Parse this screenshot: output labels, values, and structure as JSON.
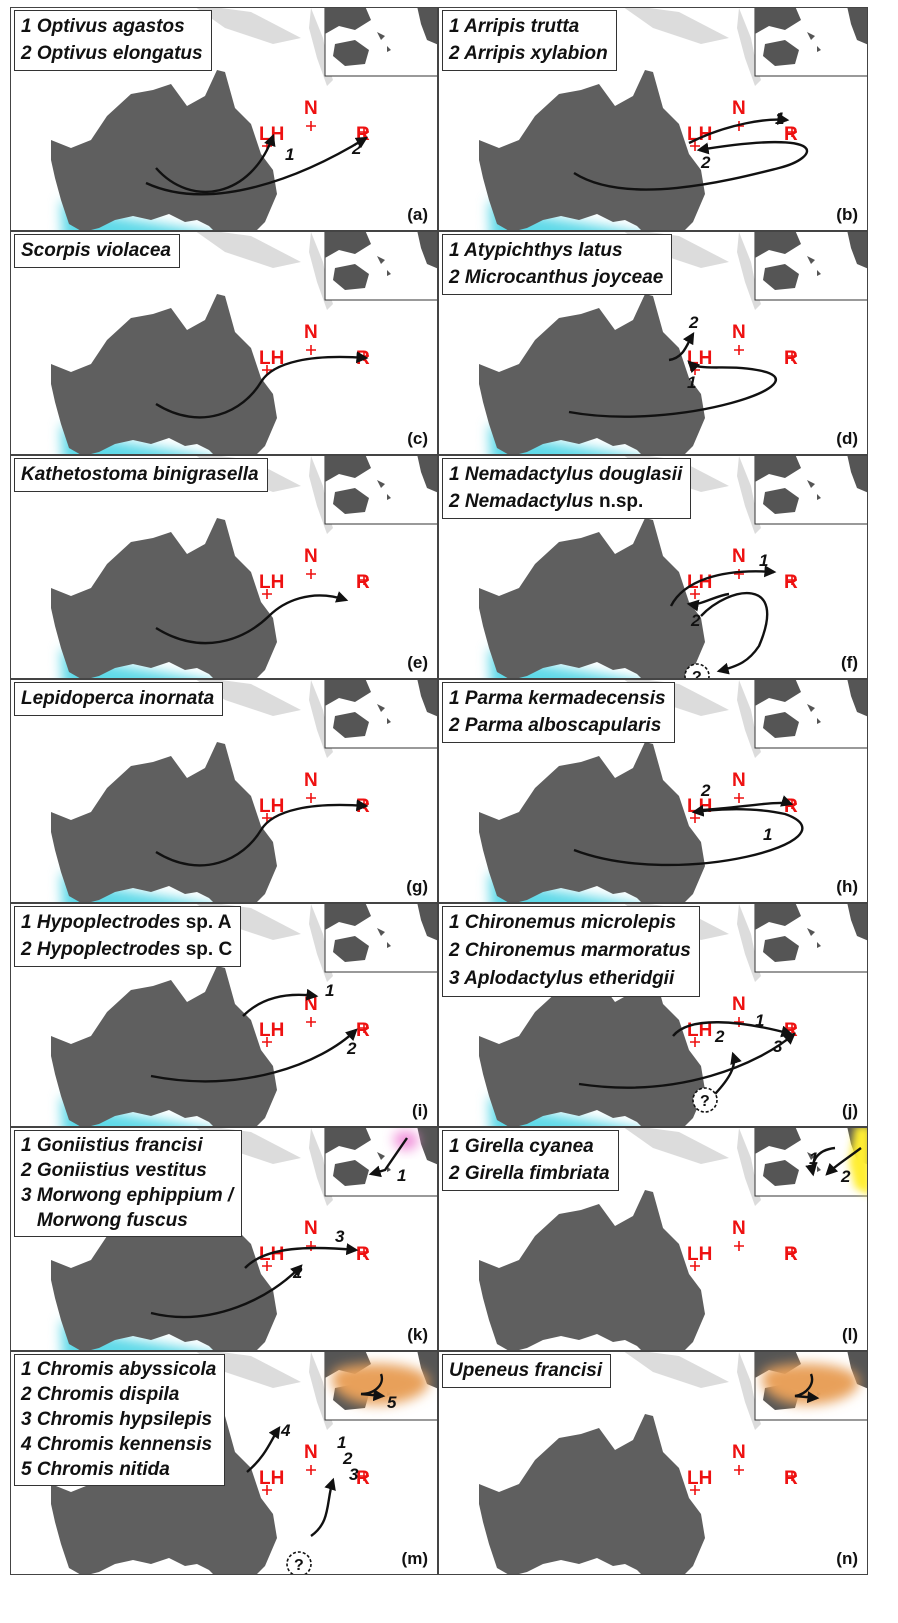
{
  "colors": {
    "land": "#5f5f5f",
    "faint_land": "#dcdcdc",
    "site": "#ee1111",
    "cyan_range": "#5fd9e8",
    "green_range": "#2bdc2b",
    "pink_range": "#f08ad8",
    "yellow_range": "#ffee33",
    "orange_range": "#e8a05a",
    "arrow": "#111111"
  },
  "sites": {
    "lh": "LH",
    "n": "N",
    "r": "R"
  },
  "unknown_origin_label": "?",
  "panels": [
    {
      "letter": "(a)",
      "legend": [
        {
          "text": "1 Optivus agastos"
        },
        {
          "text": "2 Optivus elongatus"
        }
      ]
    },
    {
      "letter": "(b)",
      "legend": [
        {
          "text": "1 Arripis trutta"
        },
        {
          "text": "2 Arripis xylabion"
        }
      ]
    },
    {
      "letter": "(c)",
      "legend": [
        {
          "text": "Scorpis violacea"
        }
      ]
    },
    {
      "letter": "(d)",
      "legend": [
        {
          "text": "1 Atypichthys latus"
        },
        {
          "text": "2 Microcanthus joyceae"
        }
      ]
    },
    {
      "letter": "(e)",
      "legend": [
        {
          "text": "Kathetostoma binigrasella"
        }
      ]
    },
    {
      "letter": "(f)",
      "legend": [
        {
          "text": "1 Nemadactylus douglasii"
        },
        {
          "text": "2 Nemadactylus",
          "suffix": " n.sp."
        }
      ]
    },
    {
      "letter": "(g)",
      "legend": [
        {
          "text": "Lepidoperca inornata"
        }
      ]
    },
    {
      "letter": "(h)",
      "legend": [
        {
          "text": "1 Parma kermadecensis"
        },
        {
          "text": "2 Parma alboscapularis"
        }
      ]
    },
    {
      "letter": "(i)",
      "legend": [
        {
          "text": "1 Hypoplectrodes",
          "suffix": " sp. A"
        },
        {
          "text": "2 Hypoplectrodes",
          "suffix": " sp. C"
        }
      ]
    },
    {
      "letter": "(j)",
      "legend": [
        {
          "text": "1 Chironemus microlepis"
        },
        {
          "text": "2 Chironemus marmoratus"
        },
        {
          "text": "3 Aplodactylus etheridgii"
        }
      ]
    },
    {
      "letter": "(k)",
      "legend": [
        {
          "text": "1 Goniistius francisi"
        },
        {
          "text": "2 Goniistius vestitus"
        },
        {
          "text": "3 Morwong ephippium /"
        },
        {
          "text": "   Morwong fuscus"
        }
      ]
    },
    {
      "letter": "(l)",
      "legend": [
        {
          "text": "1 Girella cyanea"
        },
        {
          "text": "2 Girella fimbriata"
        }
      ]
    },
    {
      "letter": "(m)",
      "legend": [
        {
          "text": "1 Chromis abyssicola"
        },
        {
          "text": "2 Chromis dispila"
        },
        {
          "text": "3 Chromis hypsilepis"
        },
        {
          "text": "4 Chromis kennensis"
        },
        {
          "text": "5 Chromis nitida"
        }
      ]
    },
    {
      "letter": "(n)",
      "legend": [
        {
          "text": "Upeneus francisi"
        }
      ]
    }
  ],
  "arrow_labels": {
    "a": [
      "1",
      "2"
    ],
    "b": [
      "1",
      "2"
    ],
    "d": [
      "1",
      "2"
    ],
    "f": [
      "1",
      "2"
    ],
    "h": [
      "1",
      "2"
    ],
    "i": [
      "1",
      "2"
    ],
    "j": [
      "1",
      "2",
      "3"
    ],
    "k": [
      "1",
      "2",
      "3"
    ],
    "l": [
      "1",
      "2"
    ],
    "m": [
      "1",
      "2",
      "3",
      "4",
      "5"
    ]
  }
}
